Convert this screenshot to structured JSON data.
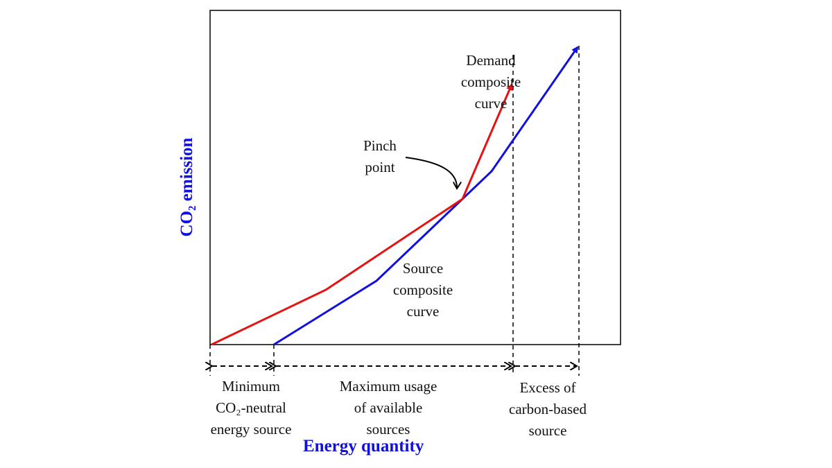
{
  "diagram": {
    "y_axis_label": "CO₂ emission",
    "x_axis_label": "Energy quantity",
    "annotations": {
      "demand": "Demand\ncomposite\ncurve",
      "pinch": "Pinch\npoint",
      "source": "Source\ncomposite\ncurve",
      "minimum": "Minimum\nCO₂-neutral\nenergy source",
      "maximum": "Maximum usage\nof available\nsources",
      "excess": "Excess of\ncarbon-based\nsource"
    },
    "colors": {
      "demand_curve": "#e81010",
      "source_curve": "#1010e0",
      "axis_labels": "#1010e0"
    }
  }
}
